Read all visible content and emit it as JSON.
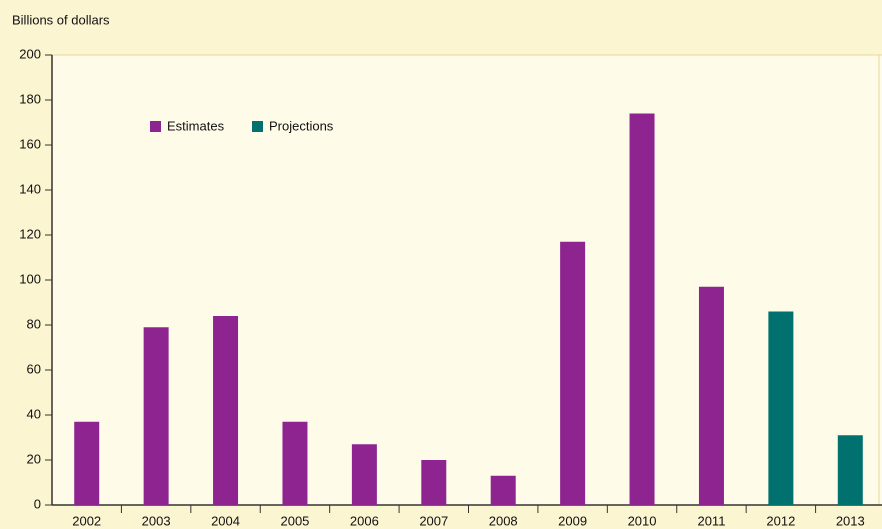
{
  "chart_data": {
    "type": "bar",
    "y_axis_label": "Billions of dollars",
    "categories": [
      "2002",
      "2003",
      "2004",
      "2005",
      "2006",
      "2007",
      "2008",
      "2009",
      "2010",
      "2011",
      "2012",
      "2013"
    ],
    "series": [
      {
        "name": "Estimates",
        "color": "#8e2490",
        "values": [
          37,
          79,
          84,
          37,
          27,
          20,
          13,
          117,
          174,
          97,
          null,
          null
        ]
      },
      {
        "name": "Projections",
        "color": "#00716e",
        "values": [
          null,
          null,
          null,
          null,
          null,
          null,
          null,
          null,
          null,
          null,
          86,
          31
        ]
      }
    ],
    "ylim": [
      0,
      200
    ],
    "yticks": [
      0,
      20,
      40,
      60,
      80,
      100,
      120,
      140,
      160,
      180,
      200
    ],
    "legend": "upper left"
  }
}
